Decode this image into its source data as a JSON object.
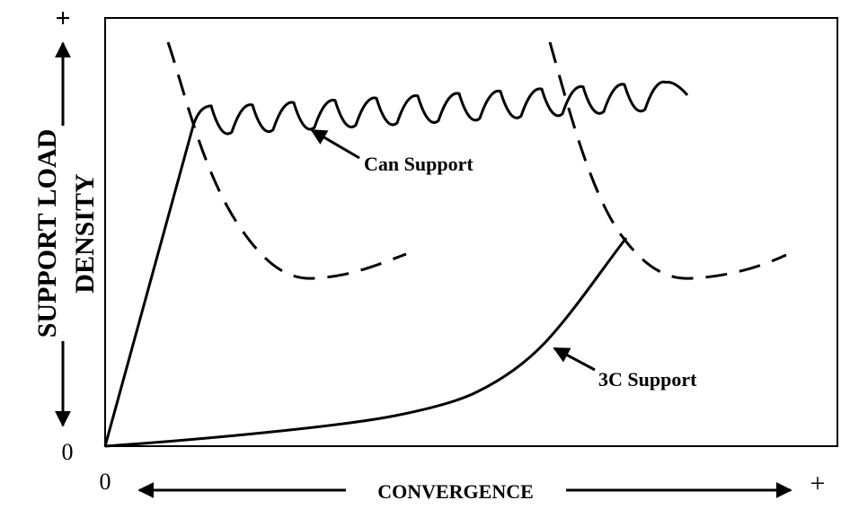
{
  "axes": {
    "y_label_lines": [
      "SUPPORT LOAD",
      "DENSITY"
    ],
    "y_top": "+",
    "y_origin": "0",
    "x_origin": "0",
    "x_label": "CONVERGENCE",
    "x_end": "+"
  },
  "annotations": [
    "Can Support",
    "3C Support"
  ]
}
